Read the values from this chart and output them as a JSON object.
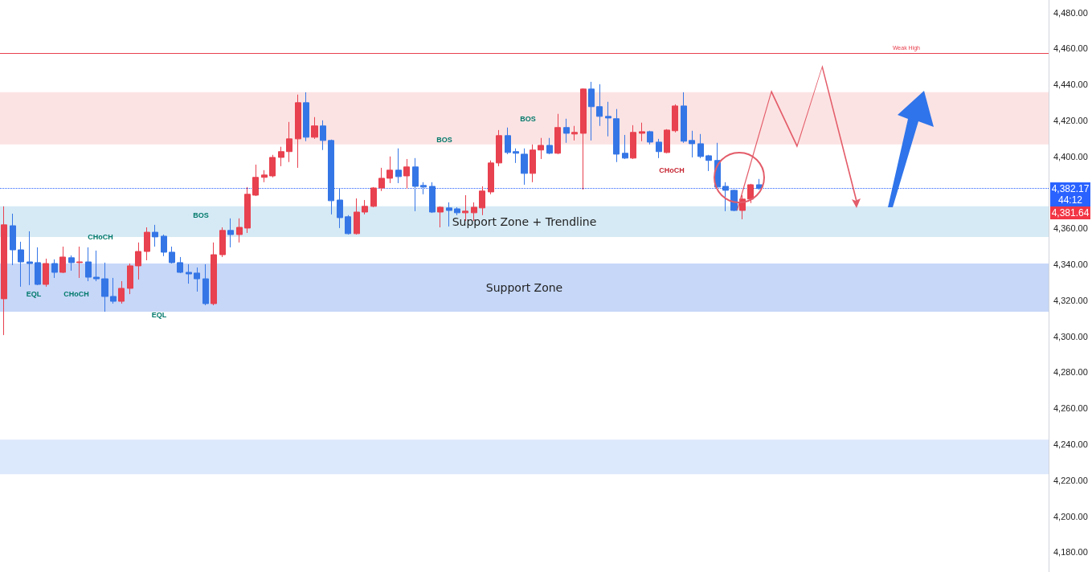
{
  "chart_data": {
    "type": "candlestick",
    "categories": [
      null,
      null,
      null,
      null,
      null,
      null,
      null,
      null,
      null,
      null,
      null,
      null,
      null,
      null,
      null,
      null,
      null,
      null,
      null,
      null,
      null,
      null,
      null,
      null,
      null,
      null,
      null,
      null,
      null,
      null,
      null,
      null,
      null,
      null,
      null,
      null,
      null,
      null,
      null,
      null,
      null,
      null,
      null,
      null,
      null,
      null,
      null,
      null,
      null,
      null,
      null,
      null,
      null,
      null,
      null,
      null,
      null,
      null,
      null,
      null,
      null,
      null,
      null,
      null,
      null,
      null,
      null,
      null,
      null,
      null,
      null,
      null,
      null,
      null,
      null,
      null,
      null,
      null,
      null,
      null,
      null,
      null,
      null,
      null,
      null,
      null,
      null,
      null,
      null,
      null,
      null,
      null,
      null,
      null,
      null,
      null,
      null,
      null,
      null,
      null,
      null,
      null,
      null,
      null,
      null,
      null,
      null,
      null,
      null,
      null,
      null,
      null,
      null,
      null,
      null,
      null,
      null,
      null,
      null,
      null,
      null,
      null,
      null,
      null,
      null
    ],
    "ohlc": [
      [
        4320.9,
        4372.3,
        4300.7,
        4362.0
      ],
      [
        4361.5,
        4368.2,
        4339.6,
        4348.1
      ],
      [
        4348.1,
        4352.6,
        4327.6,
        4341.4
      ],
      [
        4341.4,
        4358.4,
        4328.5,
        4340.5
      ],
      [
        4341.0,
        4349.5,
        4328.5,
        4328.9
      ],
      [
        4328.9,
        4343.2,
        4327.6,
        4340.5
      ],
      [
        4340.5,
        4342.8,
        4332.5,
        4335.6
      ],
      [
        4335.6,
        4349.9,
        4335.2,
        4344.1
      ],
      [
        4343.7,
        4345.0,
        4336.5,
        4341.0
      ],
      [
        4341.0,
        4349.9,
        4332.5,
        4341.4
      ],
      [
        4341.4,
        4349.5,
        4330.7,
        4332.9
      ],
      [
        4332.9,
        4347.7,
        4330.7,
        4332.0
      ],
      [
        4332.0,
        4341.0,
        4313.7,
        4322.2
      ],
      [
        4322.2,
        4332.5,
        4318.2,
        4319.5
      ],
      [
        4319.5,
        4330.7,
        4318.2,
        4326.7
      ],
      [
        4326.7,
        4340.5,
        4323.5,
        4339.2
      ],
      [
        4339.2,
        4352.2,
        4331.6,
        4347.2
      ],
      [
        4347.2,
        4360.6,
        4342.3,
        4357.9
      ],
      [
        4357.9,
        4362.0,
        4349.9,
        4355.3
      ],
      [
        4355.7,
        4356.6,
        4344.6,
        4346.8
      ],
      [
        4346.8,
        4349.9,
        4340.5,
        4341.0
      ],
      [
        4341.0,
        4344.1,
        4335.2,
        4335.6
      ],
      [
        4335.6,
        4340.1,
        4329.3,
        4334.7
      ],
      [
        4335.2,
        4338.3,
        4324.9,
        4332.0
      ],
      [
        4332.0,
        4340.1,
        4317.3,
        4318.2
      ],
      [
        4318.2,
        4352.2,
        4317.3,
        4345.4
      ],
      [
        4345.4,
        4360.6,
        4344.1,
        4358.9
      ],
      [
        4358.9,
        4365.6,
        4349.5,
        4356.6
      ],
      [
        4356.6,
        4365.6,
        4352.2,
        4360.6
      ],
      [
        4360.2,
        4383.0,
        4357.5,
        4379.0
      ],
      [
        4378.5,
        4395.5,
        4378.0,
        4388.4
      ],
      [
        4388.4,
        4392.4,
        4385.7,
        4389.7
      ],
      [
        4389.2,
        4400.9,
        4388.4,
        4399.5
      ],
      [
        4399.5,
        4405.4,
        4394.6,
        4402.7
      ],
      [
        4402.7,
        4419.2,
        4396.9,
        4409.8
      ],
      [
        4409.8,
        4434.4,
        4393.7,
        4429.9
      ],
      [
        4429.9,
        4435.7,
        4408.5,
        4410.7
      ],
      [
        4410.7,
        4421.9,
        4409.8,
        4417.0
      ],
      [
        4417.0,
        4420.1,
        4403.6,
        4408.9
      ],
      [
        4408.9,
        4409.4,
        4367.8,
        4375.4
      ],
      [
        4375.8,
        4382.5,
        4360.2,
        4366.0
      ],
      [
        4366.5,
        4367.4,
        4356.6,
        4357.1
      ],
      [
        4357.1,
        4376.7,
        4356.6,
        4369.1
      ],
      [
        4369.1,
        4375.8,
        4367.8,
        4372.3
      ],
      [
        4372.3,
        4383.0,
        4371.8,
        4382.5
      ],
      [
        4382.5,
        4393.7,
        4380.8,
        4387.9
      ],
      [
        4387.9,
        4400.0,
        4385.2,
        4392.4
      ],
      [
        4392.4,
        4404.5,
        4385.2,
        4388.8
      ],
      [
        4389.2,
        4398.6,
        4382.1,
        4394.2
      ],
      [
        4394.2,
        4399.1,
        4369.6,
        4383.4
      ],
      [
        4383.9,
        4385.7,
        4379.0,
        4383.0
      ],
      [
        4383.4,
        4385.7,
        4368.6,
        4369.1
      ],
      [
        4369.1,
        4372.3,
        4360.6,
        4371.8
      ],
      [
        4371.4,
        4374.5,
        4361.1,
        4370.0
      ],
      [
        4370.9,
        4371.8,
        4367.4,
        4368.7
      ],
      [
        4368.7,
        4378.5,
        4364.2,
        4369.6
      ],
      [
        4368.7,
        4374.5,
        4364.2,
        4371.8
      ],
      [
        4371.4,
        4383.4,
        4367.4,
        4380.8
      ],
      [
        4380.3,
        4397.8,
        4379.0,
        4396.4
      ],
      [
        4396.4,
        4414.7,
        4394.6,
        4411.6
      ],
      [
        4411.6,
        4416.1,
        4401.3,
        4402.2
      ],
      [
        4402.7,
        4404.5,
        4396.4,
        4401.8
      ],
      [
        4401.3,
        4404.5,
        4384.3,
        4390.6
      ],
      [
        4390.6,
        4406.7,
        4385.7,
        4403.6
      ],
      [
        4403.6,
        4410.3,
        4398.6,
        4406.2
      ],
      [
        4406.2,
        4410.3,
        4401.3,
        4401.8
      ],
      [
        4401.8,
        4423.7,
        4401.3,
        4416.1
      ],
      [
        4416.1,
        4421.0,
        4407.6,
        4412.9
      ],
      [
        4412.5,
        4417.0,
        4408.9,
        4413.4
      ],
      [
        4412.9,
        4437.9,
        4381.6,
        4437.5
      ],
      [
        4437.5,
        4441.5,
        4408.9,
        4427.7
      ],
      [
        4427.7,
        4440.2,
        4417.0,
        4422.3
      ],
      [
        4422.3,
        4430.4,
        4411.2,
        4421.4
      ],
      [
        4421.0,
        4426.4,
        4396.9,
        4401.3
      ],
      [
        4401.8,
        4412.0,
        4398.6,
        4399.1
      ],
      [
        4399.1,
        4417.4,
        4398.6,
        4413.4
      ],
      [
        4412.9,
        4418.8,
        4408.5,
        4413.8
      ],
      [
        4413.8,
        4414.3,
        4406.7,
        4408.0
      ],
      [
        4408.0,
        4409.8,
        4399.1,
        4402.7
      ],
      [
        4402.2,
        4415.2,
        4401.8,
        4414.7
      ],
      [
        4414.3,
        4429.0,
        4413.4,
        4428.1
      ],
      [
        4428.1,
        4435.7,
        4407.6,
        4408.5
      ],
      [
        4408.9,
        4414.3,
        4399.5,
        4407.1
      ],
      [
        4407.1,
        4412.5,
        4399.1,
        4400.0
      ],
      [
        4400.4,
        4400.9,
        4391.9,
        4397.8
      ],
      [
        4397.8,
        4407.6,
        4382.1,
        4383.0
      ],
      [
        4383.4,
        4385.7,
        4369.6,
        4381.2
      ],
      [
        4381.2,
        4381.6,
        4369.6,
        4370.0
      ],
      [
        4370.0,
        4378.5,
        4365.1,
        4376.3
      ],
      [
        4376.3,
        4384.8,
        4374.1,
        4384.3
      ],
      [
        4384.3,
        4387.5,
        4381.6,
        4382.17
      ],
      null,
      null,
      null,
      null,
      null,
      null,
      null,
      null,
      null,
      null,
      null,
      null,
      null,
      null,
      null,
      null,
      null,
      null,
      null,
      null,
      null,
      null,
      null,
      null,
      null,
      null,
      null,
      null,
      null,
      null,
      null,
      null,
      null,
      null
    ],
    "colors": [
      "#e8414f",
      "#3576e6",
      "#3576e6",
      "#3576e6",
      "#3576e6",
      "#e8414f",
      "#3576e6",
      "#e8414f",
      "#3576e6",
      "#e8414f",
      "#3576e6",
      "#3576e6",
      "#3576e6",
      "#3576e6",
      "#e8414f",
      "#e8414f",
      "#e8414f",
      "#e8414f",
      "#3576e6",
      "#3576e6",
      "#3576e6",
      "#3576e6",
      "#3576e6",
      "#3576e6",
      "#3576e6",
      "#e8414f",
      "#e8414f",
      "#3576e6",
      "#e8414f",
      "#e8414f",
      "#e8414f",
      "#e8414f",
      "#e8414f",
      "#e8414f",
      "#e8414f",
      "#e8414f",
      "#3576e6",
      "#e8414f",
      "#3576e6",
      "#3576e6",
      "#3576e6",
      "#3576e6",
      "#e8414f",
      "#e8414f",
      "#e8414f",
      "#e8414f",
      "#e8414f",
      "#3576e6",
      "#e8414f",
      "#3576e6",
      "#3576e6",
      "#3576e6",
      "#e8414f",
      "#3576e6",
      "#3576e6",
      "#e8414f",
      "#e8414f",
      "#e8414f",
      "#e8414f",
      "#e8414f",
      "#3576e6",
      "#3576e6",
      "#3576e6",
      "#e8414f",
      "#e8414f",
      "#3576e6",
      "#e8414f",
      "#3576e6",
      "#e8414f",
      "#e8414f",
      "#3576e6",
      "#3576e6",
      "#3576e6",
      "#3576e6",
      "#3576e6",
      "#e8414f",
      "#e8414f",
      "#3576e6",
      "#3576e6",
      "#e8414f",
      "#e8414f",
      "#3576e6",
      "#3576e6",
      "#3576e6",
      "#3576e6",
      "#3576e6",
      "#3576e6",
      "#3576e6",
      "#e8414f",
      "#e8414f",
      "#3576e6",
      null,
      null,
      null,
      null,
      null,
      null,
      null,
      null,
      null,
      null,
      null,
      null,
      null,
      null,
      null,
      null,
      null,
      null,
      null,
      null,
      null,
      null,
      null,
      null,
      null,
      null,
      null,
      null,
      null,
      null,
      null,
      null,
      null,
      null
    ],
    "ylim": [
      4169,
      4487
    ],
    "yticks": [
      {
        "value": 4180,
        "label": "4,180.00"
      },
      {
        "value": 4200,
        "label": "4,200.00"
      },
      {
        "value": 4220,
        "label": "4,220.00"
      },
      {
        "value": 4240,
        "label": "4,240.00"
      },
      {
        "value": 4260,
        "label": "4,260.00"
      },
      {
        "value": 4280,
        "label": "4,280.00"
      },
      {
        "value": 4300,
        "label": "4,300.00"
      },
      {
        "value": 4320,
        "label": "4,320.00"
      },
      {
        "value": 4340,
        "label": "4,340.00"
      },
      {
        "value": 4360,
        "label": "4,360.00"
      },
      {
        "value": 4400,
        "label": "4,400.00"
      },
      {
        "value": 4420,
        "label": "4,420.00"
      },
      {
        "value": 4440,
        "label": "4,440.00"
      },
      {
        "value": 4460,
        "label": "4,460.00"
      },
      {
        "value": 4480,
        "label": "4,480.00"
      }
    ],
    "tick_labels": "y",
    "grid": false,
    "bands": [
      {
        "axis": "y",
        "from": 4406.7,
        "to": 4435.7,
        "color": "#fbdede"
      },
      {
        "axis": "y",
        "from": 4355.3,
        "to": 4372.3,
        "label": "Support Zone + Trendline",
        "color": "#cfe6f3"
      },
      {
        "axis": "y",
        "from": 4313.7,
        "to": 4340.5,
        "label": "Support Zone",
        "color": "#bcd0f7"
      },
      {
        "axis": "y",
        "from": 4223.4,
        "to": 4242.6,
        "color": "#d6e4fb"
      }
    ],
    "ref_lines": [
      {
        "axis": "y",
        "value": 4457.2,
        "label": "Weak High",
        "color": "#e8414f",
        "line_style": "solid"
      },
      {
        "axis": "y",
        "value": 4382.17,
        "label": "4,382.17",
        "color": "#2962ff",
        "line_style": "dotted"
      }
    ],
    "annotations": [
      "CHoCH",
      "EQL",
      "CHoCH",
      "EQL",
      "BOS",
      "BOS",
      "BOS",
      "CHoCH",
      "44:12",
      "4,381.64"
    ]
  }
}
